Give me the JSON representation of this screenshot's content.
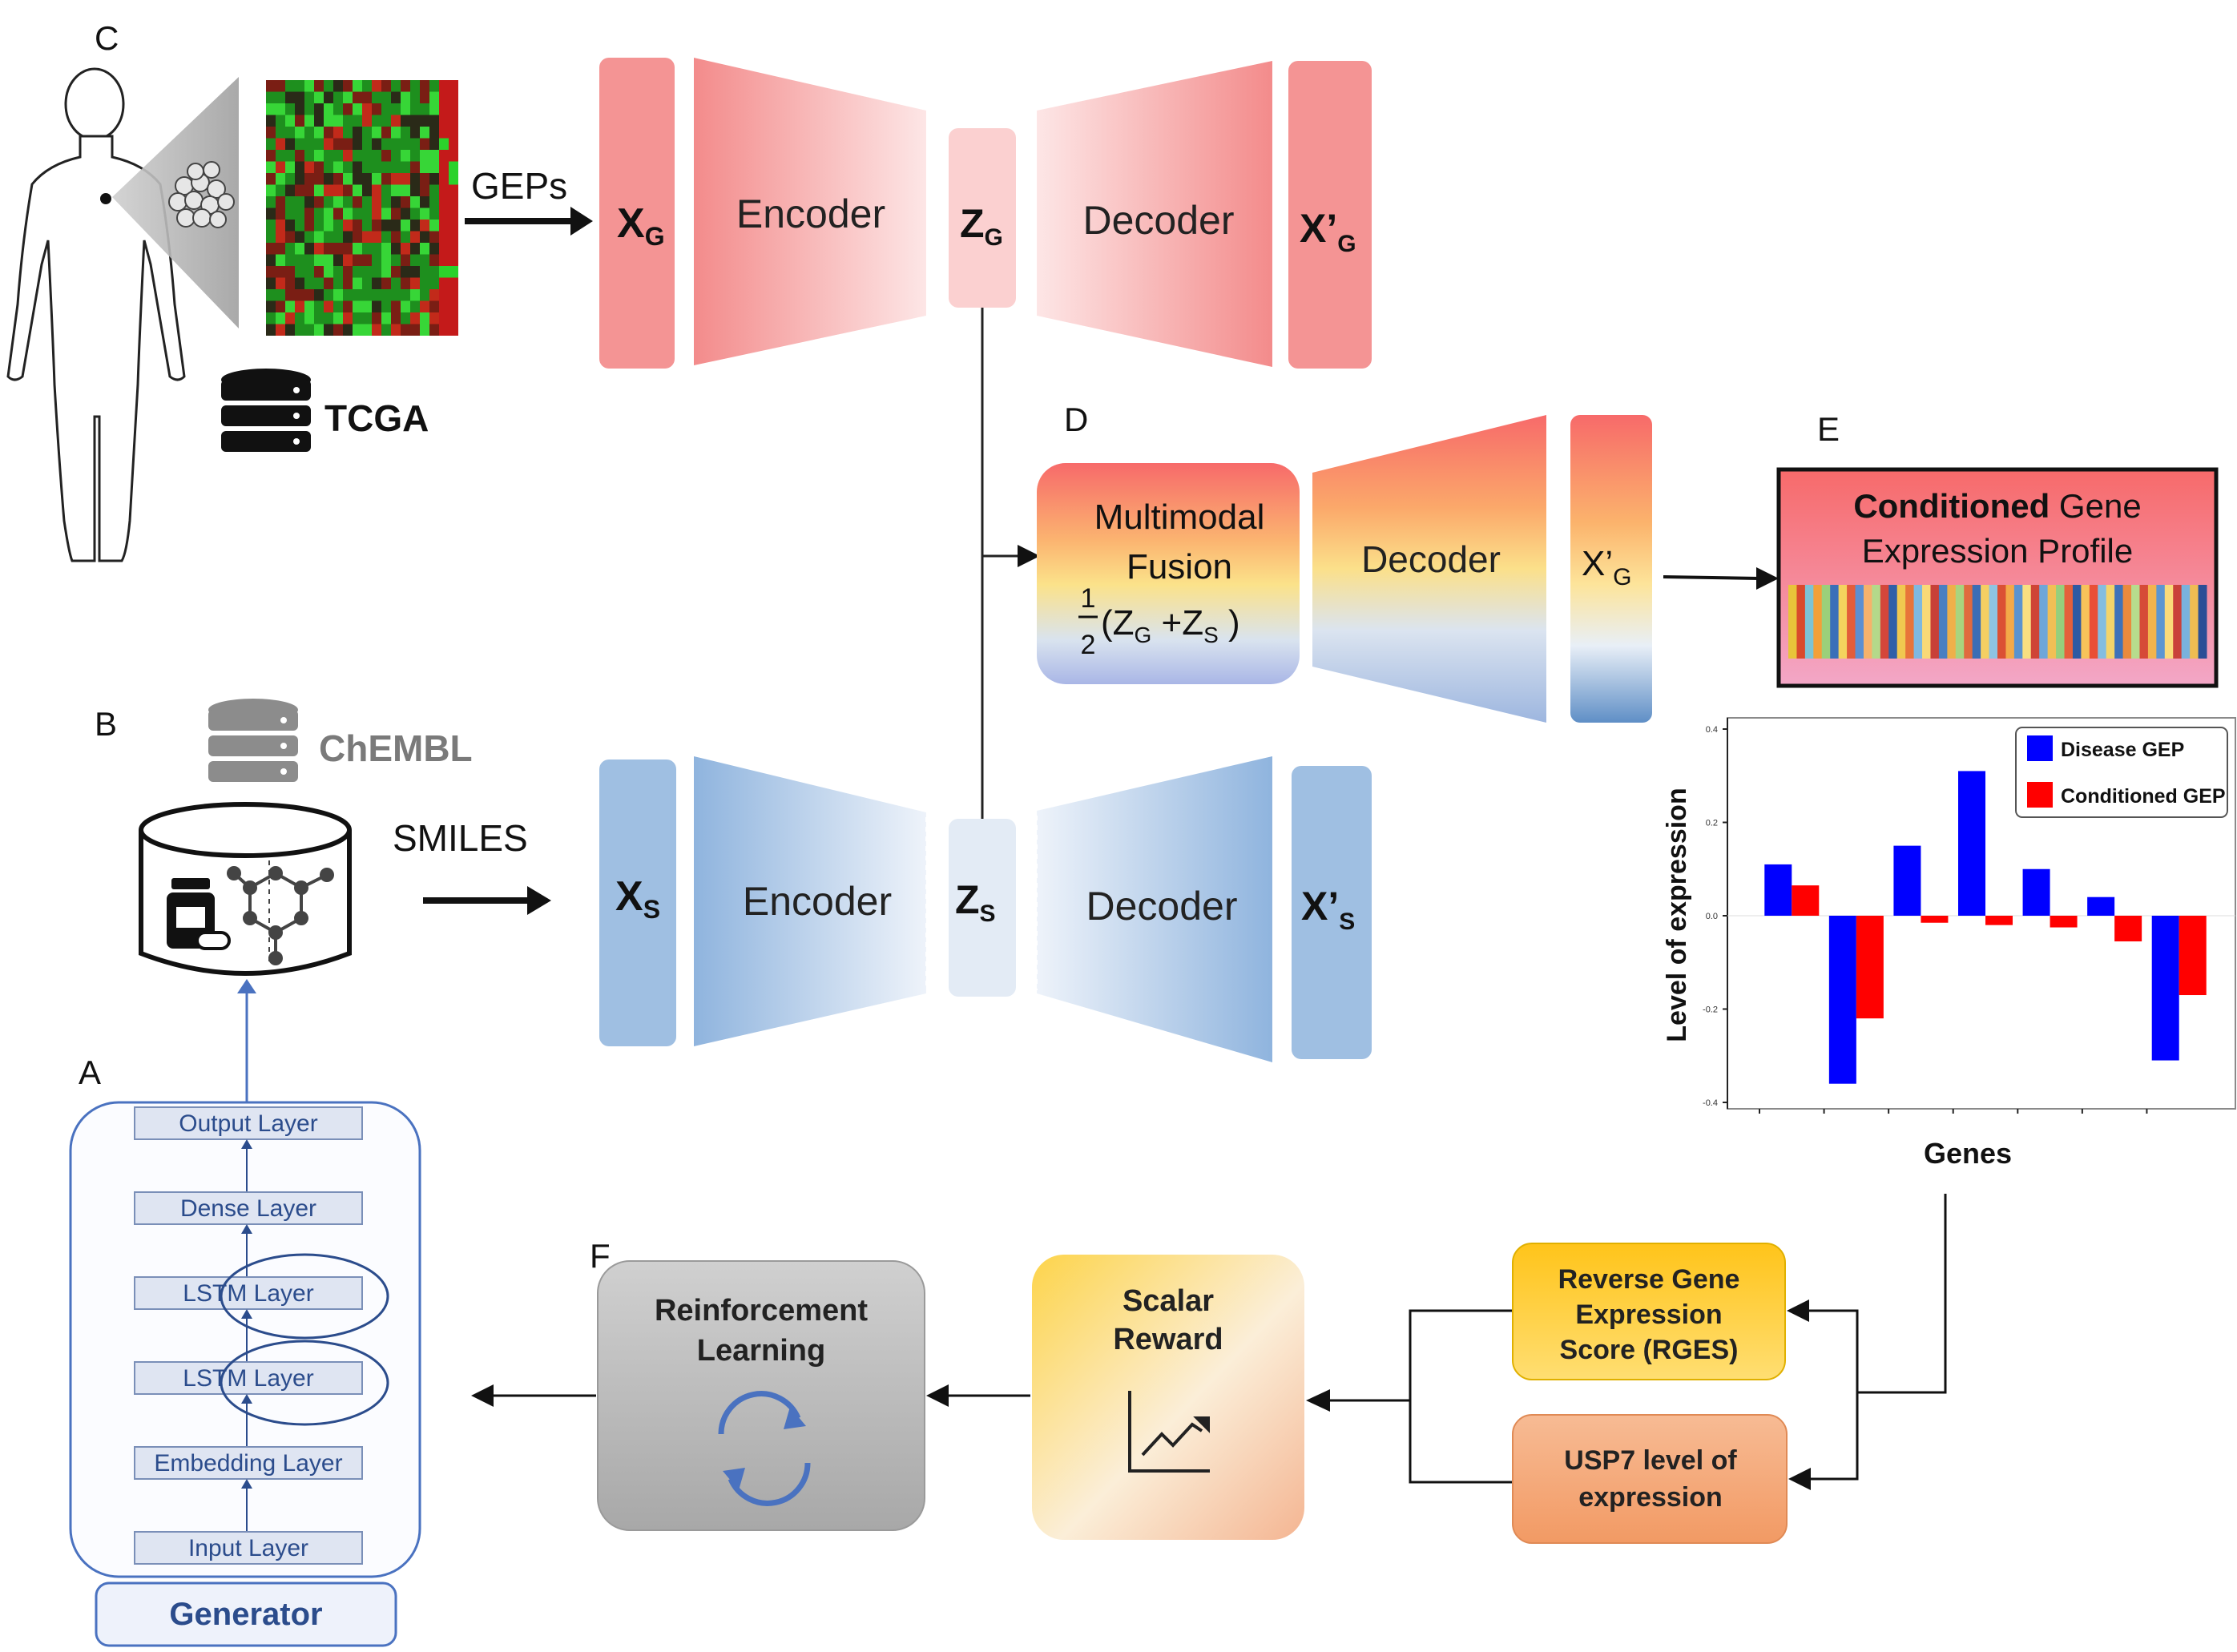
{
  "panels": {
    "a": "A",
    "b": "B",
    "c": "C",
    "d": "D",
    "e": "E",
    "f": "F"
  },
  "gene_branch": {
    "input_label": "GEPs",
    "input_main": "X",
    "input_sub": "G",
    "encoder": "Encoder",
    "latent_main": "Z",
    "latent_sub": "G",
    "decoder": "Decoder",
    "output_main": "X’",
    "output_sub": "G",
    "database": "TCGA"
  },
  "smiles_branch": {
    "input_label": "SMILES",
    "input_main": "X",
    "input_sub": "S",
    "encoder": "Encoder",
    "latent_main": "Z",
    "latent_sub": "S",
    "decoder": "Decoder",
    "output_main": "X’",
    "output_sub": "S",
    "database": "ChEMBL"
  },
  "fusion": {
    "title_line1": "Multimodal",
    "title_line2": "Fusion",
    "frac_num": "1",
    "frac_den": "2",
    "formula_open": "(Z",
    "formula_sub1": "G",
    "formula_plus": " +Z",
    "formula_sub2": "S",
    "formula_close": " )",
    "decoder": "Decoder",
    "output_main": "X’",
    "output_sub": "G"
  },
  "profile": {
    "title_bold": "Conditioned",
    "title_rest": " Gene",
    "title_line2": "Expression Profile"
  },
  "gene_profile_colors": [
    "#e8c43a",
    "#d94a2c",
    "#7cc3d6",
    "#f2a03a",
    "#9bd07a",
    "#3a6fb8",
    "#f4d35e",
    "#e35d3a",
    "#5b8fd1",
    "#f6b26b",
    "#b4d98a",
    "#d4463a",
    "#2f5fa8",
    "#f0c850",
    "#e8743a",
    "#7fb8e0",
    "#f9d977",
    "#c84038",
    "#4a7fc2",
    "#eeb04a",
    "#a8d47e",
    "#e06a3e",
    "#3b6db5",
    "#f5cf62",
    "#8ec4e2",
    "#db5034",
    "#f3a948",
    "#5a93cf",
    "#f8df80",
    "#cf4436",
    "#6ea6d9",
    "#f1bf55",
    "#96cf7c",
    "#e5603b",
    "#2e5aa3",
    "#f7c35a",
    "#e94f35",
    "#84bde0",
    "#f4d46a",
    "#3f72b9",
    "#ea8a3d",
    "#b7dc8d",
    "#d64a37",
    "#f2b44e",
    "#5c96d2",
    "#fadb7a",
    "#c9413a",
    "#79b2dd",
    "#efbc52",
    "#2b4e96"
  ],
  "chart_data": {
    "type": "bar",
    "xlabel": "Genes",
    "ylabel": "Level of expression",
    "ylim": [
      -0.4,
      0.4
    ],
    "yticks": [
      0.4,
      0.2,
      0.0,
      -0.2,
      -0.4
    ],
    "ytick_labels": [
      "0.4",
      "0.2",
      "0.0",
      "-0.2",
      "-0.4"
    ],
    "legend_position": "top-right",
    "categories": [
      "",
      "",
      "",
      "",
      "",
      "",
      ""
    ],
    "series": [
      {
        "name": "Disease GEP",
        "color": "#0000ff",
        "values": [
          0.11,
          -0.36,
          0.15,
          0.31,
          0.1,
          0.04,
          -0.31
        ]
      },
      {
        "name": "Conditioned GEP",
        "color": "#ff0000",
        "values": [
          0.065,
          -0.22,
          -0.015,
          -0.02,
          -0.025,
          -0.055,
          -0.17
        ]
      }
    ]
  },
  "generator": {
    "layers": [
      "Output Layer",
      "Dense Layer",
      "LSTM Layer",
      "LSTM Layer",
      "Embedding Layer",
      "Input Layer"
    ],
    "name": "Generator"
  },
  "rl_box": {
    "line1": "Reinforcement",
    "line2": "Learning"
  },
  "reward_box": {
    "line1": "Scalar",
    "line2": "Reward"
  },
  "rges_box": {
    "line1": "Reverse Gene",
    "line2": "Expression",
    "line3": "Score (RGES)"
  },
  "usp7_box": {
    "line1": "USP7 level of",
    "line2": "expression"
  },
  "colors": {
    "gene_fill": "#f49a9a",
    "smiles_fill": "#9fbfe2",
    "chart_border": "#8a8a8a",
    "rges_fill": "#ffcf2e",
    "usp7_fill": "#f6a877",
    "rl_fill": "#b8b8b8",
    "generator_text": "#2b4c8c"
  }
}
